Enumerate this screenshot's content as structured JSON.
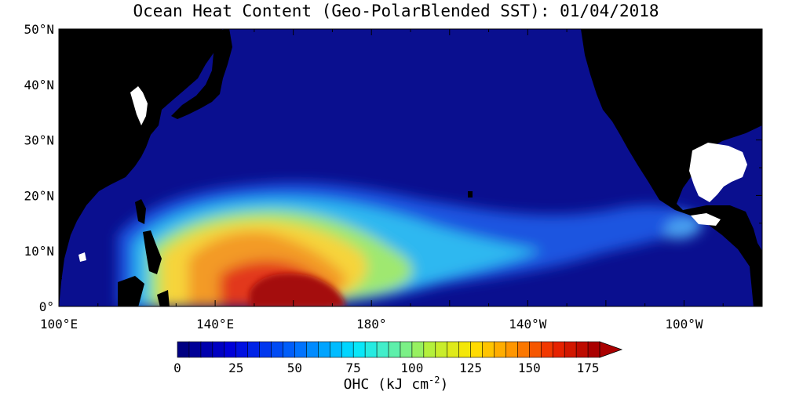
{
  "title": "Ocean Heat Content (Geo-PolarBlended SST): 01/04/2018",
  "map": {
    "lat_labels": [
      "50°N",
      "40°N",
      "30°N",
      "20°N",
      "10°N",
      "0°"
    ],
    "lat_values": [
      50,
      40,
      30,
      20,
      10,
      0
    ],
    "lon_labels": [
      "100°E",
      "140°E",
      "180°",
      "140°W",
      "100°W"
    ],
    "lon_values": [
      100,
      140,
      180,
      220,
      260
    ],
    "lon_range": [
      100,
      280
    ],
    "lat_range": [
      0,
      50
    ],
    "colors": {
      "land": "#000000",
      "ocean_low": "#0a0f8f",
      "missing": "#ffffff"
    }
  },
  "colorbar": {
    "tick_labels": [
      "0",
      "25",
      "50",
      "75",
      "100",
      "125",
      "150",
      "175"
    ],
    "tick_values": [
      0,
      25,
      50,
      75,
      100,
      125,
      150,
      175
    ],
    "min": 0,
    "max": 180,
    "step": 5,
    "title_main": "OHC (kJ cm",
    "title_exp": "-2",
    "title_close": ")"
  }
}
